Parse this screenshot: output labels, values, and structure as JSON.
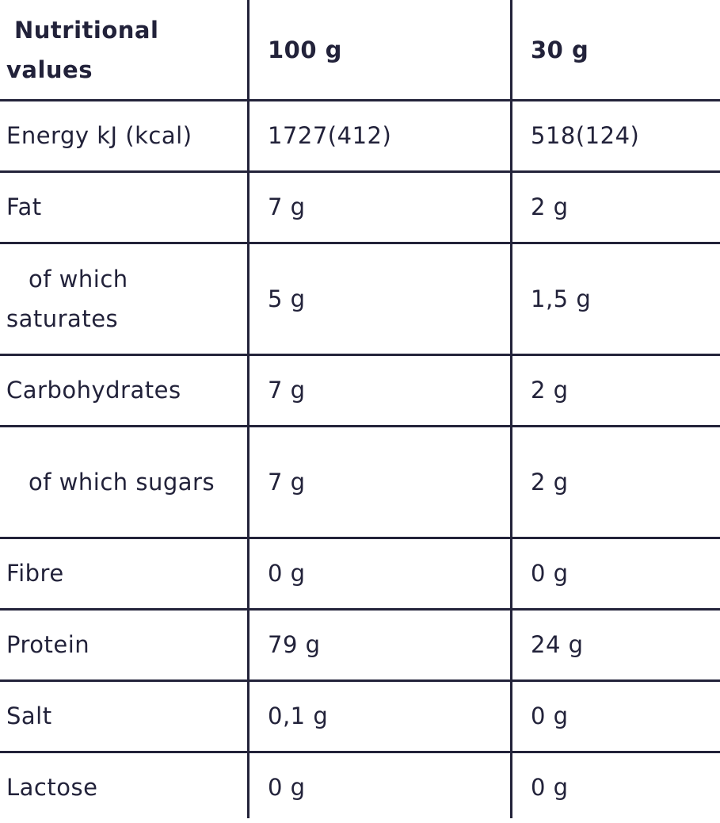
{
  "table": {
    "header": [
      "Nutritional values",
      "100 g",
      "30 g"
    ],
    "rows": [
      [
        "Energy kJ (kcal)",
        "1727(412)",
        "518(124)"
      ],
      [
        "Fat",
        "7 g",
        "2 g"
      ],
      [
        "of which saturates",
        "5 g",
        "1,5 g"
      ],
      [
        "Carbohydrates",
        "7 g",
        "2 g"
      ],
      [
        "of which sugars",
        "7 g",
        "2 g"
      ],
      [
        "Fibre",
        "0 g",
        "0 g"
      ],
      [
        "Protein",
        "79 g",
        "24 g"
      ],
      [
        "Salt",
        "0,1 g",
        "0 g"
      ],
      [
        "Lactose",
        "0 g",
        "0 g"
      ]
    ]
  }
}
